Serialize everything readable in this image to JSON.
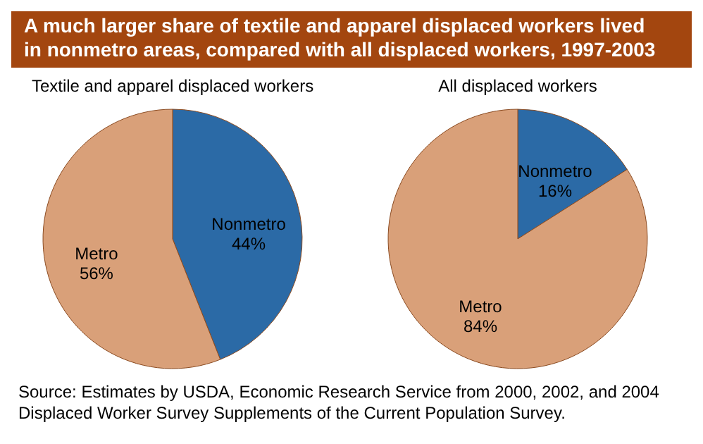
{
  "chart_data": [
    {
      "type": "pie",
      "title": "A much larger share of textile and apparel displaced workers lived in nonmetro areas, compared with all displaced workers, 1997-2003",
      "subtitle": "Textile and apparel displaced workers",
      "categories": [
        "Nonmetro",
        "Metro"
      ],
      "values": [
        44,
        56
      ],
      "colors": [
        "#2b6aa6",
        "#d9a079"
      ],
      "value_labels": [
        "44%",
        "56%"
      ]
    },
    {
      "type": "pie",
      "subtitle": "All displaced workers",
      "categories": [
        "Nonmetro",
        "Metro"
      ],
      "values": [
        16,
        84
      ],
      "colors": [
        "#2b6aa6",
        "#d9a079"
      ],
      "value_labels": [
        "16%",
        "84%"
      ],
      "annotations": [
        "Source:  Estimates by USDA, Economic Research Service from 2000, 2002, and 2004 Displaced Worker Survey Supplements of the Current Population Survey."
      ]
    }
  ]
}
